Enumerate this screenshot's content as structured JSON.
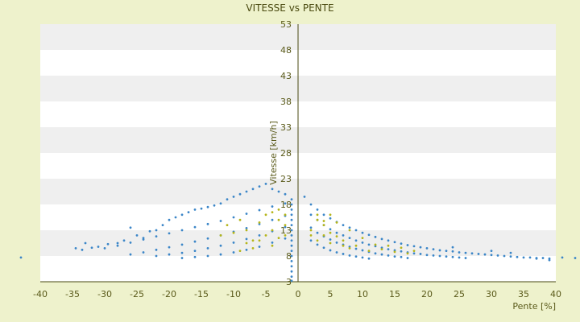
{
  "chart_data": {
    "type": "scatter",
    "title": "VITESSE vs PENTE",
    "xlabel": "Pente [%]",
    "ylabel": "Vitesse [km/h]",
    "xlim": [
      -40,
      40
    ],
    "ylim": [
      3,
      53
    ],
    "x_ticks": [
      -40,
      -35,
      -30,
      -25,
      -20,
      -15,
      -10,
      -5,
      0,
      5,
      10,
      15,
      20,
      25,
      30,
      35,
      40
    ],
    "y_ticks": [
      3,
      8,
      13,
      18,
      23,
      28,
      33,
      38,
      43,
      48,
      53
    ],
    "grid": "horizontal bands",
    "legend": "none",
    "colors": {
      "background": "#eef2cc",
      "plot_area": "#ffffff",
      "band": "#efefef",
      "series_main": "#3b86c8",
      "series_secondary": "#b5b51a",
      "axis": "#4a4a10"
    },
    "series": [
      {
        "points": [
          [
            -43,
            7.7
          ],
          [
            -34.5,
            9.5
          ],
          [
            -33.5,
            9.2
          ],
          [
            -33,
            10.5
          ],
          [
            -32,
            9.6
          ],
          [
            -31,
            9.8
          ],
          [
            -29.5,
            10.3
          ],
          [
            -28,
            10.5
          ],
          [
            -27,
            11
          ],
          [
            -26,
            13.5
          ],
          [
            -25,
            12
          ],
          [
            -24,
            11.5
          ],
          [
            -23,
            12.8
          ],
          [
            -22,
            13
          ],
          [
            -21,
            14
          ],
          [
            -20,
            15
          ],
          [
            -19,
            15.5
          ],
          [
            -18,
            16
          ],
          [
            -17,
            16.5
          ],
          [
            -16,
            17
          ],
          [
            -15,
            17.2
          ],
          [
            -14,
            17.5
          ],
          [
            -13,
            17.8
          ],
          [
            -12,
            18.2
          ],
          [
            -11,
            19
          ],
          [
            -10,
            19.5
          ],
          [
            -9,
            20
          ],
          [
            -8,
            20.5
          ],
          [
            -7,
            21
          ],
          [
            -6,
            21.5
          ],
          [
            -5,
            22
          ],
          [
            -4,
            21
          ],
          [
            -3,
            20.5
          ],
          [
            -2,
            20
          ],
          [
            -1,
            19
          ],
          [
            -30,
            9.5
          ],
          [
            -28,
            10
          ],
          [
            -26,
            10.6
          ],
          [
            -24,
            11.2
          ],
          [
            -22,
            11.8
          ],
          [
            -20,
            12.4
          ],
          [
            -18,
            13
          ],
          [
            -16,
            13.6
          ],
          [
            -14,
            14.2
          ],
          [
            -12,
            14.8
          ],
          [
            -10,
            15.5
          ],
          [
            -8,
            16.2
          ],
          [
            -6,
            16.9
          ],
          [
            -4,
            17.6
          ],
          [
            -2,
            18.2
          ],
          [
            -26,
            8.3
          ],
          [
            -24,
            8.7
          ],
          [
            -22,
            9.2
          ],
          [
            -20,
            9.7
          ],
          [
            -18,
            10.2
          ],
          [
            -16,
            10.8
          ],
          [
            -14,
            11.4
          ],
          [
            -12,
            12
          ],
          [
            -10,
            12.7
          ],
          [
            -8,
            13.4
          ],
          [
            -6,
            14.2
          ],
          [
            -4,
            15
          ],
          [
            -2,
            15.8
          ],
          [
            -22,
            8
          ],
          [
            -20,
            8.3
          ],
          [
            -18,
            8.6
          ],
          [
            -16,
            9
          ],
          [
            -14,
            9.5
          ],
          [
            -12,
            10
          ],
          [
            -10,
            10.6
          ],
          [
            -8,
            11.3
          ],
          [
            -6,
            12
          ],
          [
            -4,
            12.8
          ],
          [
            -2,
            13.6
          ],
          [
            -18,
            7.6
          ],
          [
            -16,
            7.8
          ],
          [
            -14,
            8
          ],
          [
            -12,
            8.3
          ],
          [
            -10,
            8.7
          ],
          [
            -8,
            9.2
          ],
          [
            -6,
            9.8
          ],
          [
            -4,
            10.6
          ],
          [
            -2,
            11.4
          ],
          [
            -1,
            3.2
          ],
          [
            -1,
            4
          ],
          [
            -1,
            5
          ],
          [
            -1,
            6
          ],
          [
            -1,
            7
          ],
          [
            -1,
            8
          ],
          [
            -1,
            9
          ],
          [
            -1,
            10
          ],
          [
            -1,
            11
          ],
          [
            -1,
            12
          ],
          [
            -1,
            13
          ],
          [
            -1,
            14
          ],
          [
            -1,
            15
          ],
          [
            -1,
            16
          ],
          [
            -1,
            17
          ],
          [
            -1,
            18
          ],
          [
            1,
            19.5
          ],
          [
            2,
            18
          ],
          [
            3,
            17
          ],
          [
            4,
            16
          ],
          [
            5,
            15.3
          ],
          [
            6,
            14.6
          ],
          [
            7,
            14
          ],
          [
            8,
            13.5
          ],
          [
            9,
            13
          ],
          [
            10,
            12.5
          ],
          [
            11,
            12.1
          ],
          [
            12,
            11.7
          ],
          [
            13,
            11.3
          ],
          [
            14,
            11
          ],
          [
            15,
            10.7
          ],
          [
            16,
            10.4
          ],
          [
            17,
            10.1
          ],
          [
            18,
            9.9
          ],
          [
            19,
            9.7
          ],
          [
            20,
            9.5
          ],
          [
            21,
            9.3
          ],
          [
            22,
            9.1
          ],
          [
            23,
            9
          ],
          [
            24,
            8.9
          ],
          [
            25,
            8.7
          ],
          [
            26,
            8.6
          ],
          [
            27,
            8.5
          ],
          [
            28,
            8.4
          ],
          [
            29,
            8.3
          ],
          [
            30,
            8.2
          ],
          [
            31,
            8.1
          ],
          [
            32,
            8
          ],
          [
            33,
            7.9
          ],
          [
            34,
            7.8
          ],
          [
            35,
            7.7
          ],
          [
            36,
            7.7
          ],
          [
            37,
            7.6
          ],
          [
            38,
            7.6
          ],
          [
            39,
            7.5
          ],
          [
            41,
            7.7
          ],
          [
            43,
            7.6
          ],
          [
            2,
            16
          ],
          [
            3,
            15
          ],
          [
            4,
            14
          ],
          [
            5,
            13.2
          ],
          [
            6,
            12.5
          ],
          [
            7,
            12
          ],
          [
            8,
            11.5
          ],
          [
            9,
            11
          ],
          [
            10,
            10.6
          ],
          [
            11,
            10.2
          ],
          [
            12,
            9.9
          ],
          [
            13,
            9.6
          ],
          [
            14,
            9.3
          ],
          [
            15,
            9.1
          ],
          [
            16,
            8.9
          ],
          [
            17,
            8.7
          ],
          [
            18,
            8.5
          ],
          [
            19,
            8.4
          ],
          [
            20,
            8.2
          ],
          [
            21,
            8.1
          ],
          [
            22,
            8
          ],
          [
            23,
            7.9
          ],
          [
            24,
            7.8
          ],
          [
            25,
            7.7
          ],
          [
            26,
            7.6
          ],
          [
            2,
            13.5
          ],
          [
            3,
            12.5
          ],
          [
            4,
            11.8
          ],
          [
            5,
            11.2
          ],
          [
            6,
            10.6
          ],
          [
            7,
            10.2
          ],
          [
            8,
            9.8
          ],
          [
            9,
            9.4
          ],
          [
            10,
            9.1
          ],
          [
            11,
            8.8
          ],
          [
            12,
            8.5
          ],
          [
            13,
            8.3
          ],
          [
            14,
            8.1
          ],
          [
            15,
            7.9
          ],
          [
            16,
            7.8
          ],
          [
            17,
            7.6
          ],
          [
            2,
            11
          ],
          [
            3,
            10.2
          ],
          [
            4,
            9.6
          ],
          [
            5,
            9.1
          ],
          [
            6,
            8.7
          ],
          [
            7,
            8.4
          ],
          [
            8,
            8.1
          ],
          [
            9,
            7.9
          ],
          [
            10,
            7.7
          ],
          [
            11,
            7.5
          ],
          [
            24,
            9.7
          ],
          [
            30,
            9
          ],
          [
            33,
            8.6
          ],
          [
            37,
            7.5
          ],
          [
            39,
            7.2
          ]
        ]
      },
      {
        "points": [
          [
            -12,
            12
          ],
          [
            -11,
            14
          ],
          [
            -10,
            12.5
          ],
          [
            -9,
            15
          ],
          [
            -8,
            13
          ],
          [
            -7,
            11
          ],
          [
            -6,
            14.5
          ],
          [
            -5,
            16
          ],
          [
            -4,
            13
          ],
          [
            -3,
            15
          ],
          [
            -2,
            14
          ],
          [
            -9,
            9
          ],
          [
            -8,
            10.5
          ],
          [
            -7,
            9.5
          ],
          [
            -6,
            11
          ],
          [
            -5,
            12
          ],
          [
            -4,
            10
          ],
          [
            -3,
            11.5
          ],
          [
            -2,
            12
          ],
          [
            -4,
            16.5
          ],
          [
            -3,
            17
          ],
          [
            -2,
            16
          ],
          [
            2,
            13
          ],
          [
            3,
            15
          ],
          [
            4,
            14
          ],
          [
            5,
            12.5
          ],
          [
            6,
            14.5
          ],
          [
            7,
            11
          ],
          [
            8,
            13
          ],
          [
            9,
            10
          ],
          [
            10,
            11.5
          ],
          [
            11,
            9
          ],
          [
            12,
            10.2
          ],
          [
            13,
            9.3
          ],
          [
            14,
            10
          ],
          [
            15,
            8.8
          ],
          [
            16,
            9.6
          ],
          [
            17,
            8.5
          ],
          [
            18,
            9
          ],
          [
            3,
            11
          ],
          [
            4,
            12
          ],
          [
            5,
            10.5
          ],
          [
            6,
            11.8
          ],
          [
            7,
            10
          ],
          [
            8,
            9.5
          ],
          [
            3,
            16
          ],
          [
            4,
            14.8
          ],
          [
            2,
            12
          ],
          [
            5,
            16
          ]
        ]
      }
    ]
  }
}
